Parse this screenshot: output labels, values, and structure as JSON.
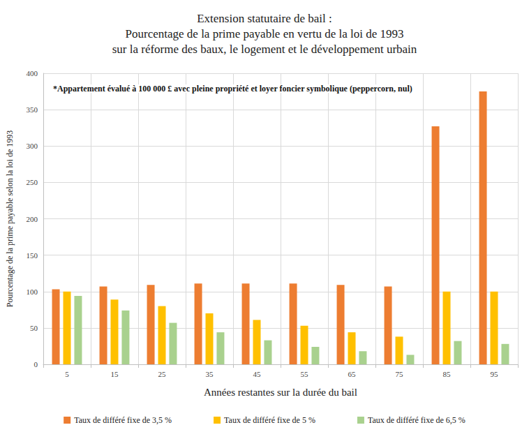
{
  "chart_data": {
    "type": "bar",
    "title": "Extension statutaire de bail :\nPourcentage de la prime payable en vertu de la loi de 1993\nsur la réforme des baux, le logement et le développement urbain",
    "annotation": "*Appartement évalué à 100 000 £ avec pleine propriété et loyer foncier symbolique (peppercorn, nul)",
    "x_label": "Années restantes sur la durée du bail",
    "y_label": "Pourcentage de la prime payable selon la loi de 1993",
    "categories": [
      "5",
      "15",
      "25",
      "35",
      "45",
      "55",
      "65",
      "75",
      "85",
      "95"
    ],
    "series": [
      {
        "name": "Taux de différé fixe de 3,5 %",
        "color": "#ed7d31",
        "values": [
          103,
          107,
          109,
          111,
          111,
          111,
          109,
          107,
          327,
          375
        ]
      },
      {
        "name": "Taux de différé fixe de 5 %",
        "color": "#ffc000",
        "values": [
          100,
          89,
          80,
          70,
          61,
          53,
          44,
          38,
          100,
          100
        ]
      },
      {
        "name": "Taux de différé fixe de 6,5 %",
        "color": "#a9d18e",
        "values": [
          94,
          74,
          57,
          44,
          33,
          24,
          18,
          13,
          32,
          28
        ]
      }
    ],
    "ylim": [
      0,
      400
    ],
    "yticks": [
      0,
      50,
      100,
      150,
      200,
      250,
      300,
      350,
      400
    ],
    "grid": true,
    "legend": "bottom"
  }
}
